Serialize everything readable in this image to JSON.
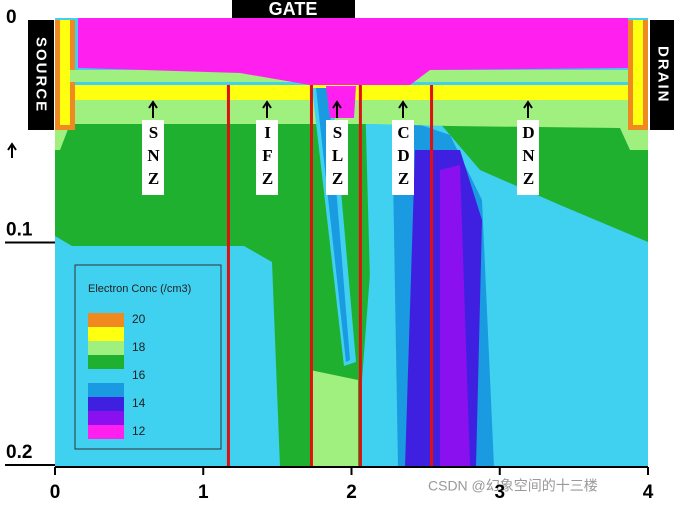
{
  "chart_data": {
    "type": "contour",
    "top_label": "GATE",
    "left_label": "SOURCE",
    "right_label": "DRAIN",
    "xlim": [
      0,
      4
    ],
    "xticks": [
      0,
      1,
      2,
      3,
      4
    ],
    "ylim": [
      0,
      0.2
    ],
    "yticks": [
      0,
      0.1,
      0.2
    ],
    "regions": [
      "SNZ",
      "IFZ",
      "SLZ",
      "CDZ",
      "DNZ"
    ],
    "boundaries": [
      1.17,
      1.73,
      2.06,
      2.54
    ],
    "boundary_color": "#e01010",
    "legend": {
      "title": "Electron Conc (/cm3)",
      "colors": [
        "#f08a20",
        "#ffff10",
        "#a0f080",
        "#20b030",
        "#40d0f0",
        "#1a9ae0",
        "#4020e0",
        "#8a10f0",
        "#ff20f0"
      ],
      "labels": [
        20,
        18,
        16,
        14,
        12
      ]
    },
    "watermark": "CSDN @幻象空间的十三楼"
  }
}
